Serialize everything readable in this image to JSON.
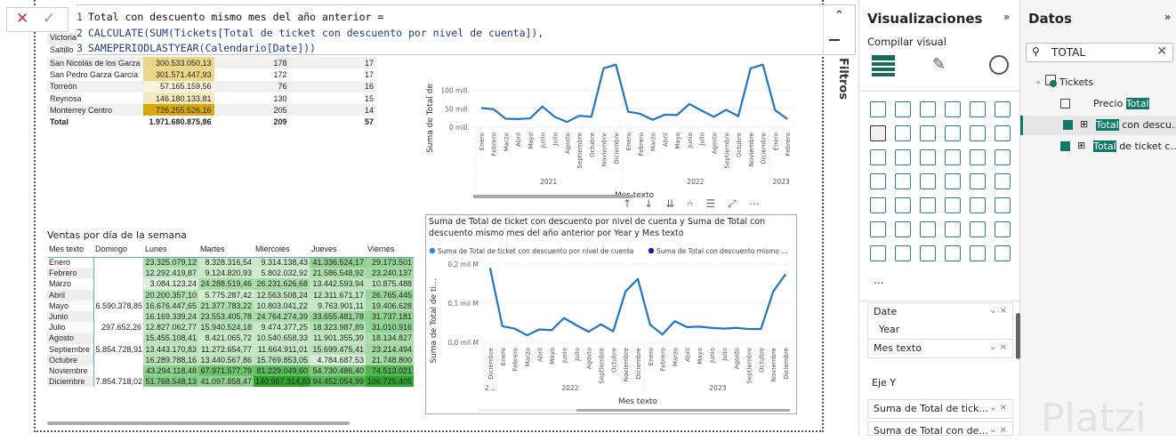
{
  "formula": {
    "lines": [
      {
        "n": "1",
        "text": "Total con descuento mismo mes del año anterior ="
      },
      {
        "n": "2",
        "text": "CALCULATE(SUM(Tickets[Total de ticket con descuento por nivel de cuenta]),"
      },
      {
        "n": "3",
        "text": "SAMEPERIODLASTYEAR(Calendario[Date]))"
      }
    ],
    "cancel": "✕",
    "commit": "✓",
    "collapse": "⌃"
  },
  "filters_label": "Filtros",
  "city_table": {
    "partial_rows": [
      "Victoria",
      "Saltillo"
    ],
    "rows": [
      {
        "name": "San Nicolás de los Garza",
        "value": "300.533.050,13",
        "a": "178",
        "b": "17",
        "shade": 0.4
      },
      {
        "name": "San Pedro Garza García",
        "value": "301.571.447,93",
        "a": "172",
        "b": "17",
        "shade": 0.4
      },
      {
        "name": "Torreón",
        "value": "57.165.159,56",
        "a": "76",
        "b": "16",
        "shade": 0.0
      },
      {
        "name": "Reynosa",
        "value": "146.180.133,81",
        "a": "130",
        "b": "15",
        "shade": 0.15
      },
      {
        "name": "Monterrey Centro",
        "value": "726.255.526,16",
        "a": "205",
        "b": "14",
        "shade": 1.0
      }
    ],
    "total": {
      "name": "Total",
      "value": "1.971.680.875,86",
      "a": "209",
      "b": "57"
    }
  },
  "weekday": {
    "title": "Ventas por día de la semana",
    "headers": [
      "Mes texto",
      "Domingo",
      "Lunes",
      "Martes",
      "Miercoles",
      "Jueves",
      "Viernes"
    ],
    "rows": [
      [
        "Enero",
        "",
        "23.325.079,12",
        "8.328.316,54",
        "9.314.138,43",
        "41.336.524,17",
        "29.173.501"
      ],
      [
        "Febrero",
        "",
        "12.292.419,87",
        "9.124.820,93",
        "5.802.032,92",
        "21.586.548,92",
        "23.240.137"
      ],
      [
        "Marzo",
        "",
        "3.084.123,24",
        "24.288.519,46",
        "26.231.626,68",
        "13.442.593,94",
        "10.875.488"
      ],
      [
        "Abril",
        "",
        "20.200.357,10",
        "5.775.287,42",
        "12.563.508,24",
        "12.311.671,17",
        "26.765.445"
      ],
      [
        "Mayo",
        "6.590.378,85",
        "16.676.447,65",
        "21.377.783,22",
        "10.803.041,22",
        "9.763.901,11",
        "19.406.628"
      ],
      [
        "Junio",
        "",
        "16.169.339,24",
        "23.553.405,78",
        "24.764.274,39",
        "33.655.481,78",
        "31.737.181"
      ],
      [
        "Julio",
        "297.652,26",
        "12.827.062,77",
        "15.940.524,18",
        "9.474.377,25",
        "18.323.987,89",
        "31.010.916"
      ],
      [
        "Agosto",
        "",
        "15.455.108,41",
        "8.421.065,72",
        "10.540.658,33",
        "11.901.355,39",
        "18.134.827"
      ],
      [
        "Septiembre",
        "5.854.728,91",
        "13.443.170,83",
        "11.272.654,77",
        "11.664.911,01",
        "15.699.475,41",
        "23.214.494"
      ],
      [
        "Octubre",
        "",
        "16.289.788,16",
        "13.440.567,86",
        "15.769.853,05",
        "4.784.687,53",
        "21.748.800"
      ],
      [
        "Noviembre",
        "",
        "43.294.118,48",
        "67.971.577,79",
        "81.229.049,60",
        "54.730.486,40",
        "74.513.021"
      ],
      [
        "Diciembre",
        "7.854.718,02",
        "51.768.548,13",
        "41.097.858,47",
        "140.967.314,83",
        "94.452.054,99",
        "106.725.405"
      ]
    ]
  },
  "chart_data": [
    {
      "type": "line",
      "title": "",
      "xlabel": "Mes texto",
      "ylabel": "Suma de Total de",
      "ylim": [
        0,
        145
      ],
      "yticks": [
        {
          "v": 0,
          "label": "0 mill."
        },
        {
          "v": 50,
          "label": "50 mill."
        },
        {
          "v": 100,
          "label": "100 mill."
        }
      ],
      "x": [
        "Enero",
        "Febrero",
        "Marzo",
        "Abril",
        "Mayo",
        "Junio",
        "Julio",
        "Agosto",
        "Septiembre",
        "Octubre",
        "Noviembre",
        "Diciembre",
        "Enero",
        "Febrero",
        "Marzo",
        "Abril",
        "Mayo",
        "Junio",
        "Julio",
        "Agosto",
        "Septiembre",
        "Octubre",
        "Noviembre",
        "Diciembre",
        "Enero",
        "Febrero"
      ],
      "groups": [
        {
          "label": "2021",
          "count": 12
        },
        {
          "label": "2022",
          "count": 12
        },
        {
          "label": "2023",
          "count": 2
        }
      ],
      "series": [
        {
          "name": "Suma de Total de ticket",
          "color": "#1f77c4",
          "values": [
            52,
            49,
            23,
            22,
            24,
            56,
            28,
            14,
            31,
            28,
            160,
            170,
            42,
            36,
            20,
            34,
            33,
            63,
            45,
            28,
            47,
            30,
            160,
            170,
            46,
            22
          ]
        }
      ]
    },
    {
      "type": "line",
      "title": "Suma de Total de ticket con descuento por nivel de cuenta y Suma de Total con descuento mismo mes del año anterior por Year y Mes texto",
      "xlabel": "Mes texto",
      "ylabel": "Suma de Total de ti...",
      "ylim": [
        0,
        0.2
      ],
      "yticks": [
        {
          "v": 0,
          "label": "0,0 mil M"
        },
        {
          "v": 0.1,
          "label": "0,1 mil M"
        },
        {
          "v": 0.2,
          "label": "0,2 mil M"
        }
      ],
      "x": [
        "Diciembre",
        "Enero",
        "Febrero",
        "Marzo",
        "Abril",
        "Mayo",
        "Junio",
        "Julio",
        "Agosto",
        "Septiembre",
        "Octubre",
        "Noviembre",
        "Diciembre",
        "Enero",
        "Febrero",
        "Marzo",
        "Abril",
        "Mayo",
        "Junio",
        "Julio",
        "Agosto",
        "Septiembre",
        "Octubre",
        "Noviembre",
        "Diciembre"
      ],
      "groups": [
        {
          "label": "2...",
          "count": 1
        },
        {
          "label": "2022",
          "count": 12
        },
        {
          "label": "2023",
          "count": 12
        }
      ],
      "legend": [
        {
          "name": "Suma de Total de ticket con descuento por nivel de cuenta",
          "color": "#2a8ae0"
        },
        {
          "name": "Suma de Total con descuento mismo ...",
          "color": "#12239e"
        }
      ],
      "series": [
        {
          "name": "Suma de Total de ticket con descuento por nivel de cuenta",
          "color": "#1f77c4",
          "values": [
            0.19,
            0.041,
            0.035,
            0.018,
            0.033,
            0.031,
            0.062,
            0.044,
            0.027,
            0.046,
            0.028,
            0.13,
            0.162,
            0.045,
            0.02,
            0.054,
            0.039,
            0.04,
            0.037,
            0.035,
            0.037,
            0.034,
            0.034,
            0.13,
            0.174
          ]
        }
      ]
    }
  ],
  "visual_toolbar": [
    "↑",
    "↓",
    "⇊",
    "⑃",
    "☰",
    "⤢",
    "⋯"
  ],
  "visualizations": {
    "title": "Visualizaciones",
    "expand": "»",
    "subtitle": "Compilar visual",
    "more": "...",
    "wells": {
      "date": "Date",
      "year": "Year",
      "mes": "Mes texto",
      "ejey": "Eje Y",
      "y1": "Suma de Total de tick...",
      "y2": "Suma de Total con de..."
    }
  },
  "datos": {
    "title": "Datos",
    "expand": "»",
    "search_value": "TOTAL",
    "table": "Tickets",
    "fields": [
      {
        "hl": "Total",
        "pre": "Precio ",
        "post": "",
        "checked": false
      },
      {
        "hl": "Total",
        "pre": "",
        "post": " con descu...",
        "checked": true
      },
      {
        "hl": "Total",
        "pre": "",
        "post": " de ticket c...",
        "checked": true
      }
    ]
  },
  "watermark": "Platzi"
}
